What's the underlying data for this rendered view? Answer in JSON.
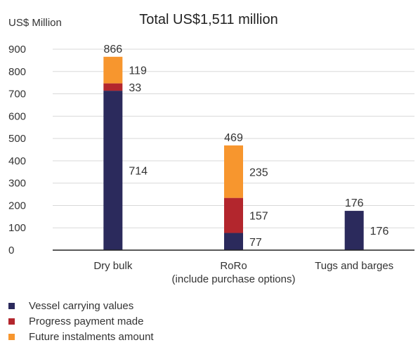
{
  "chart_data": {
    "type": "bar",
    "stacked": true,
    "title": "Total US$1,511 million",
    "ylabel": "US$ Million",
    "xlabel": "",
    "ylim": [
      0,
      900
    ],
    "yticks": [
      0,
      100,
      200,
      300,
      400,
      500,
      600,
      700,
      800,
      900
    ],
    "grid": true,
    "legend_position": "bottom-left",
    "categories": [
      [
        "Dry bulk"
      ],
      [
        "RoRo",
        "(include purchase options)"
      ],
      [
        "Tugs and barges"
      ]
    ],
    "totals": [
      866,
      469,
      176
    ],
    "series": [
      {
        "name": "Vessel carrying values",
        "color": "#2b2a5c",
        "values": [
          714,
          77,
          176
        ]
      },
      {
        "name": "Progress payment made",
        "color": "#b3262d",
        "values": [
          33,
          157,
          0
        ]
      },
      {
        "name": "Future instalments amount",
        "color": "#f7962e",
        "values": [
          119,
          235,
          0
        ]
      }
    ]
  }
}
